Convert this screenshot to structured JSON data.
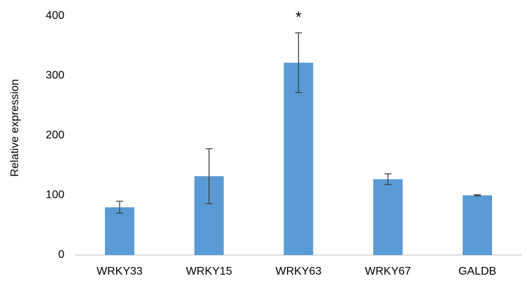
{
  "chart_data": {
    "type": "bar",
    "categories": [
      "WRKY33",
      "WRKY15",
      "WRKY63",
      "WRKY67",
      "GALDB"
    ],
    "values": [
      80,
      132,
      322,
      127,
      100
    ],
    "error_bars": [
      10,
      46,
      50,
      9,
      1
    ],
    "ylabel": "Relative expression",
    "xlabel": "",
    "ylim": [
      0,
      400
    ],
    "yticks": [
      0,
      100,
      200,
      300,
      400
    ],
    "grid": false,
    "legend": "none",
    "annotations": [
      {
        "category": "WRKY63",
        "text": "*"
      }
    ],
    "colors": {
      "bar": "#5b9bd5",
      "error_bar": "#404040",
      "axis": "#bfbfbf",
      "text": "#000000"
    }
  }
}
